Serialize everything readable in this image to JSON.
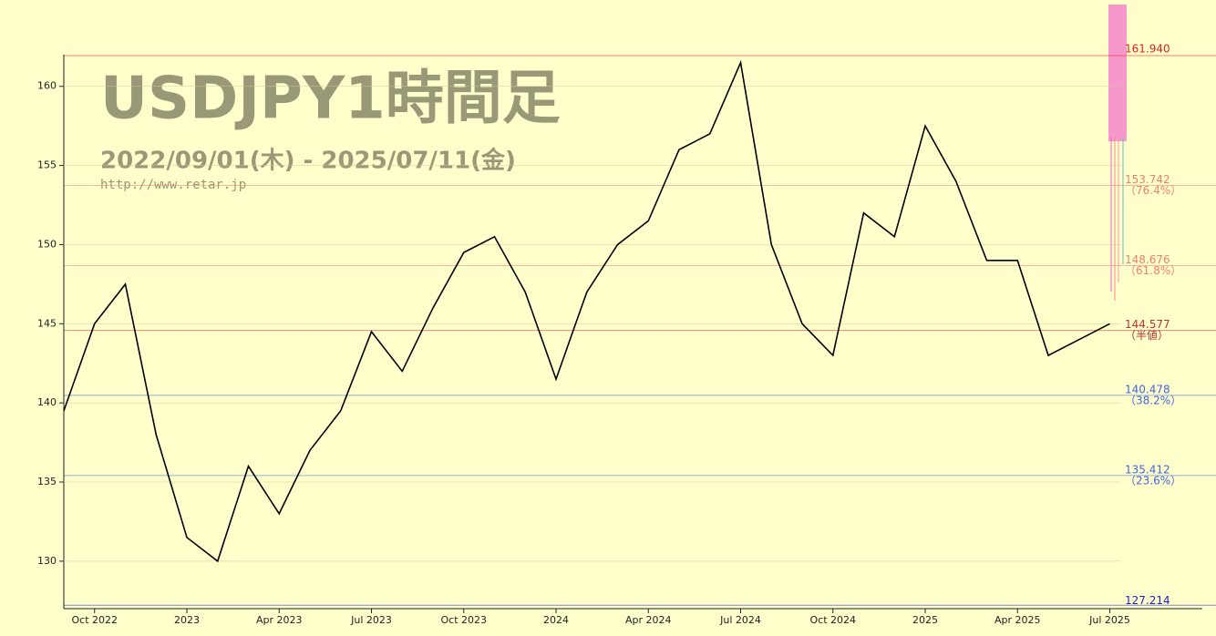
{
  "chart_data": {
    "type": "line",
    "title": "USDJPY1時間足",
    "subtitle": "2022/09/01(木) - 2025/07/11(金)",
    "url": "http://www.retar.jp",
    "x": [
      "2022-09",
      "2022-10",
      "2022-11",
      "2022-12",
      "2023-01",
      "2023-02",
      "2023-03",
      "2023-04",
      "2023-05",
      "2023-06",
      "2023-07",
      "2023-08",
      "2023-09",
      "2023-10",
      "2023-11",
      "2023-12",
      "2024-01",
      "2024-02",
      "2024-03",
      "2024-04",
      "2024-05",
      "2024-06",
      "2024-07",
      "2024-08",
      "2024-09",
      "2024-10",
      "2024-11",
      "2024-12",
      "2025-01",
      "2025-02",
      "2025-03",
      "2025-04",
      "2025-05",
      "2025-06",
      "2025-07"
    ],
    "series": [
      {
        "name": "USDJPY",
        "color": "#000000",
        "values": [
          139.5,
          145,
          147.5,
          138,
          131.5,
          130,
          136,
          133,
          137,
          139.5,
          144.5,
          142,
          146,
          149.5,
          150.5,
          147,
          141.5,
          147,
          150,
          151.5,
          156,
          157,
          161.5,
          150,
          145,
          143,
          152,
          150.5,
          157.5,
          154,
          149,
          149,
          143,
          144,
          145
        ]
      }
    ],
    "xlim": [
      "2022-09",
      "2025-10"
    ],
    "xticks": [
      {
        "value": "2022-10",
        "label": "Oct 2022"
      },
      {
        "value": "2023-01",
        "label": "2023"
      },
      {
        "value": "2023-04",
        "label": "Apr 2023"
      },
      {
        "value": "2023-07",
        "label": "Jul 2023"
      },
      {
        "value": "2023-10",
        "label": "Oct 2023"
      },
      {
        "value": "2024-01",
        "label": "2024"
      },
      {
        "value": "2024-04",
        "label": "Apr 2024"
      },
      {
        "value": "2024-07",
        "label": "Jul 2024"
      },
      {
        "value": "2024-10",
        "label": "Oct 2024"
      },
      {
        "value": "2025-01",
        "label": "2025"
      },
      {
        "value": "2025-04",
        "label": "Apr 2025"
      },
      {
        "value": "2025-07",
        "label": "Jul 2025"
      }
    ],
    "ylim": [
      127,
      162
    ],
    "yticks": [
      130,
      135,
      140,
      145,
      150,
      155,
      160
    ],
    "levels": [
      {
        "value": 161.94,
        "label": "161.940",
        "color": "#dd2222"
      },
      {
        "value": 153.742,
        "ratio": "（76.4%）",
        "color": "#f08070"
      },
      {
        "value": 148.676,
        "ratio": "（61.8%）",
        "color": "#f08070"
      },
      {
        "value": 144.577,
        "ratio": "（半値）",
        "color": "#bb3333"
      },
      {
        "value": 140.478,
        "ratio": "（38.2%）",
        "color": "#4466dd"
      },
      {
        "value": 135.412,
        "ratio": "（23.6%）",
        "color": "#4466dd"
      },
      {
        "value": 127.214,
        "color": "#2222cc"
      }
    ]
  }
}
